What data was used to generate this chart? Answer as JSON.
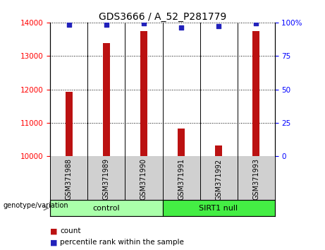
{
  "title": "GDS3666 / A_52_P281779",
  "samples": [
    "GSM371988",
    "GSM371989",
    "GSM371990",
    "GSM371991",
    "GSM371992",
    "GSM371993"
  ],
  "counts": [
    11920,
    13380,
    13750,
    10820,
    10320,
    13750
  ],
  "percentiles": [
    98.5,
    98.5,
    99.5,
    96.0,
    97.5,
    99.5
  ],
  "ylim_left": [
    10000,
    14000
  ],
  "ylim_right": [
    0,
    100
  ],
  "yticks_left": [
    10000,
    11000,
    12000,
    13000,
    14000
  ],
  "yticks_right": [
    0,
    25,
    50,
    75,
    100
  ],
  "bar_color": "#bb1111",
  "dot_color": "#2222bb",
  "bar_width": 0.18,
  "control_label": "control",
  "sirt1_label": "SIRT1 null",
  "genotype_label": "genotype/variation",
  "legend_count": "count",
  "legend_percentile": "percentile rank within the sample",
  "control_color": "#aaffaa",
  "sirt1_color": "#44ee44",
  "tick_area_color": "#d0d0d0",
  "background_color": "#ffffff",
  "n_control": 3,
  "n_sirt1": 3
}
